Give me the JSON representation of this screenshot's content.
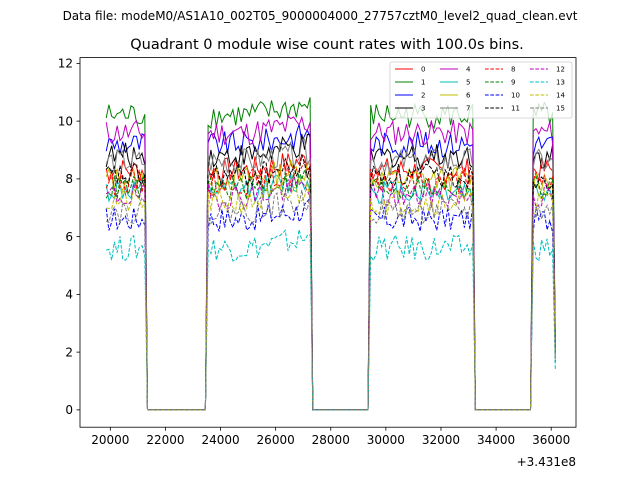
{
  "suptitle": "Data file: modeM0/AS1A10_002T05_9000004000_27757cztM0_level2_quad_clean.evt",
  "chart_data": {
    "type": "line",
    "title": "Quadrant 0 module wise count rates with 100.0s bins.",
    "xlabel": "",
    "ylabel": "",
    "x_offset_label": "+3.431e8",
    "xlim": [
      18900,
      36900
    ],
    "ylim": [
      -0.6,
      12.2
    ],
    "x_ticks": [
      20000,
      22000,
      24000,
      26000,
      28000,
      30000,
      32000,
      34000,
      36000
    ],
    "y_ticks": [
      0,
      2,
      4,
      6,
      8,
      10,
      12
    ],
    "grid": false,
    "legend_position": "top-right",
    "legend_columns": 4,
    "bin_seconds": 100,
    "segments": [
      {
        "start": 19850,
        "end": 21250
      },
      {
        "start": 23550,
        "end": 27250
      },
      {
        "start": 29450,
        "end": 33150
      },
      {
        "start": 35350,
        "end": 36150
      }
    ],
    "gap_level": 0,
    "series": [
      {
        "name": "0",
        "color": "#ff0000",
        "dash": "solid",
        "level": 8.3
      },
      {
        "name": "1",
        "color": "#008000",
        "dash": "solid",
        "level": 10.2
      },
      {
        "name": "2",
        "color": "#0000ff",
        "dash": "solid",
        "level": 9.2
      },
      {
        "name": "3",
        "color": "#000000",
        "dash": "solid",
        "level": 8.8
      },
      {
        "name": "4",
        "color": "#bf00bf",
        "dash": "solid",
        "level": 9.6
      },
      {
        "name": "5",
        "color": "#00bfbf",
        "dash": "solid",
        "level": 7.6
      },
      {
        "name": "6",
        "color": "#bfbf00",
        "dash": "solid",
        "level": 8.0
      },
      {
        "name": "7",
        "color": "#808080",
        "dash": "solid",
        "level": 8.6
      },
      {
        "name": "8",
        "color": "#ff0000",
        "dash": "dashed",
        "level": 7.9
      },
      {
        "name": "9",
        "color": "#008000",
        "dash": "dashed",
        "level": 7.7
      },
      {
        "name": "10",
        "color": "#0000ff",
        "dash": "dashed",
        "level": 6.6
      },
      {
        "name": "11",
        "color": "#000000",
        "dash": "dashed",
        "level": 8.1
      },
      {
        "name": "12",
        "color": "#bf00bf",
        "dash": "dashed",
        "level": 7.4
      },
      {
        "name": "13",
        "color": "#00bfbf",
        "dash": "dashed",
        "level": 5.6
      },
      {
        "name": "14",
        "color": "#bfbf00",
        "dash": "dashed",
        "level": 7.2
      },
      {
        "name": "15",
        "color": "#808080",
        "dash": "dashed",
        "level": 6.9
      }
    ]
  }
}
